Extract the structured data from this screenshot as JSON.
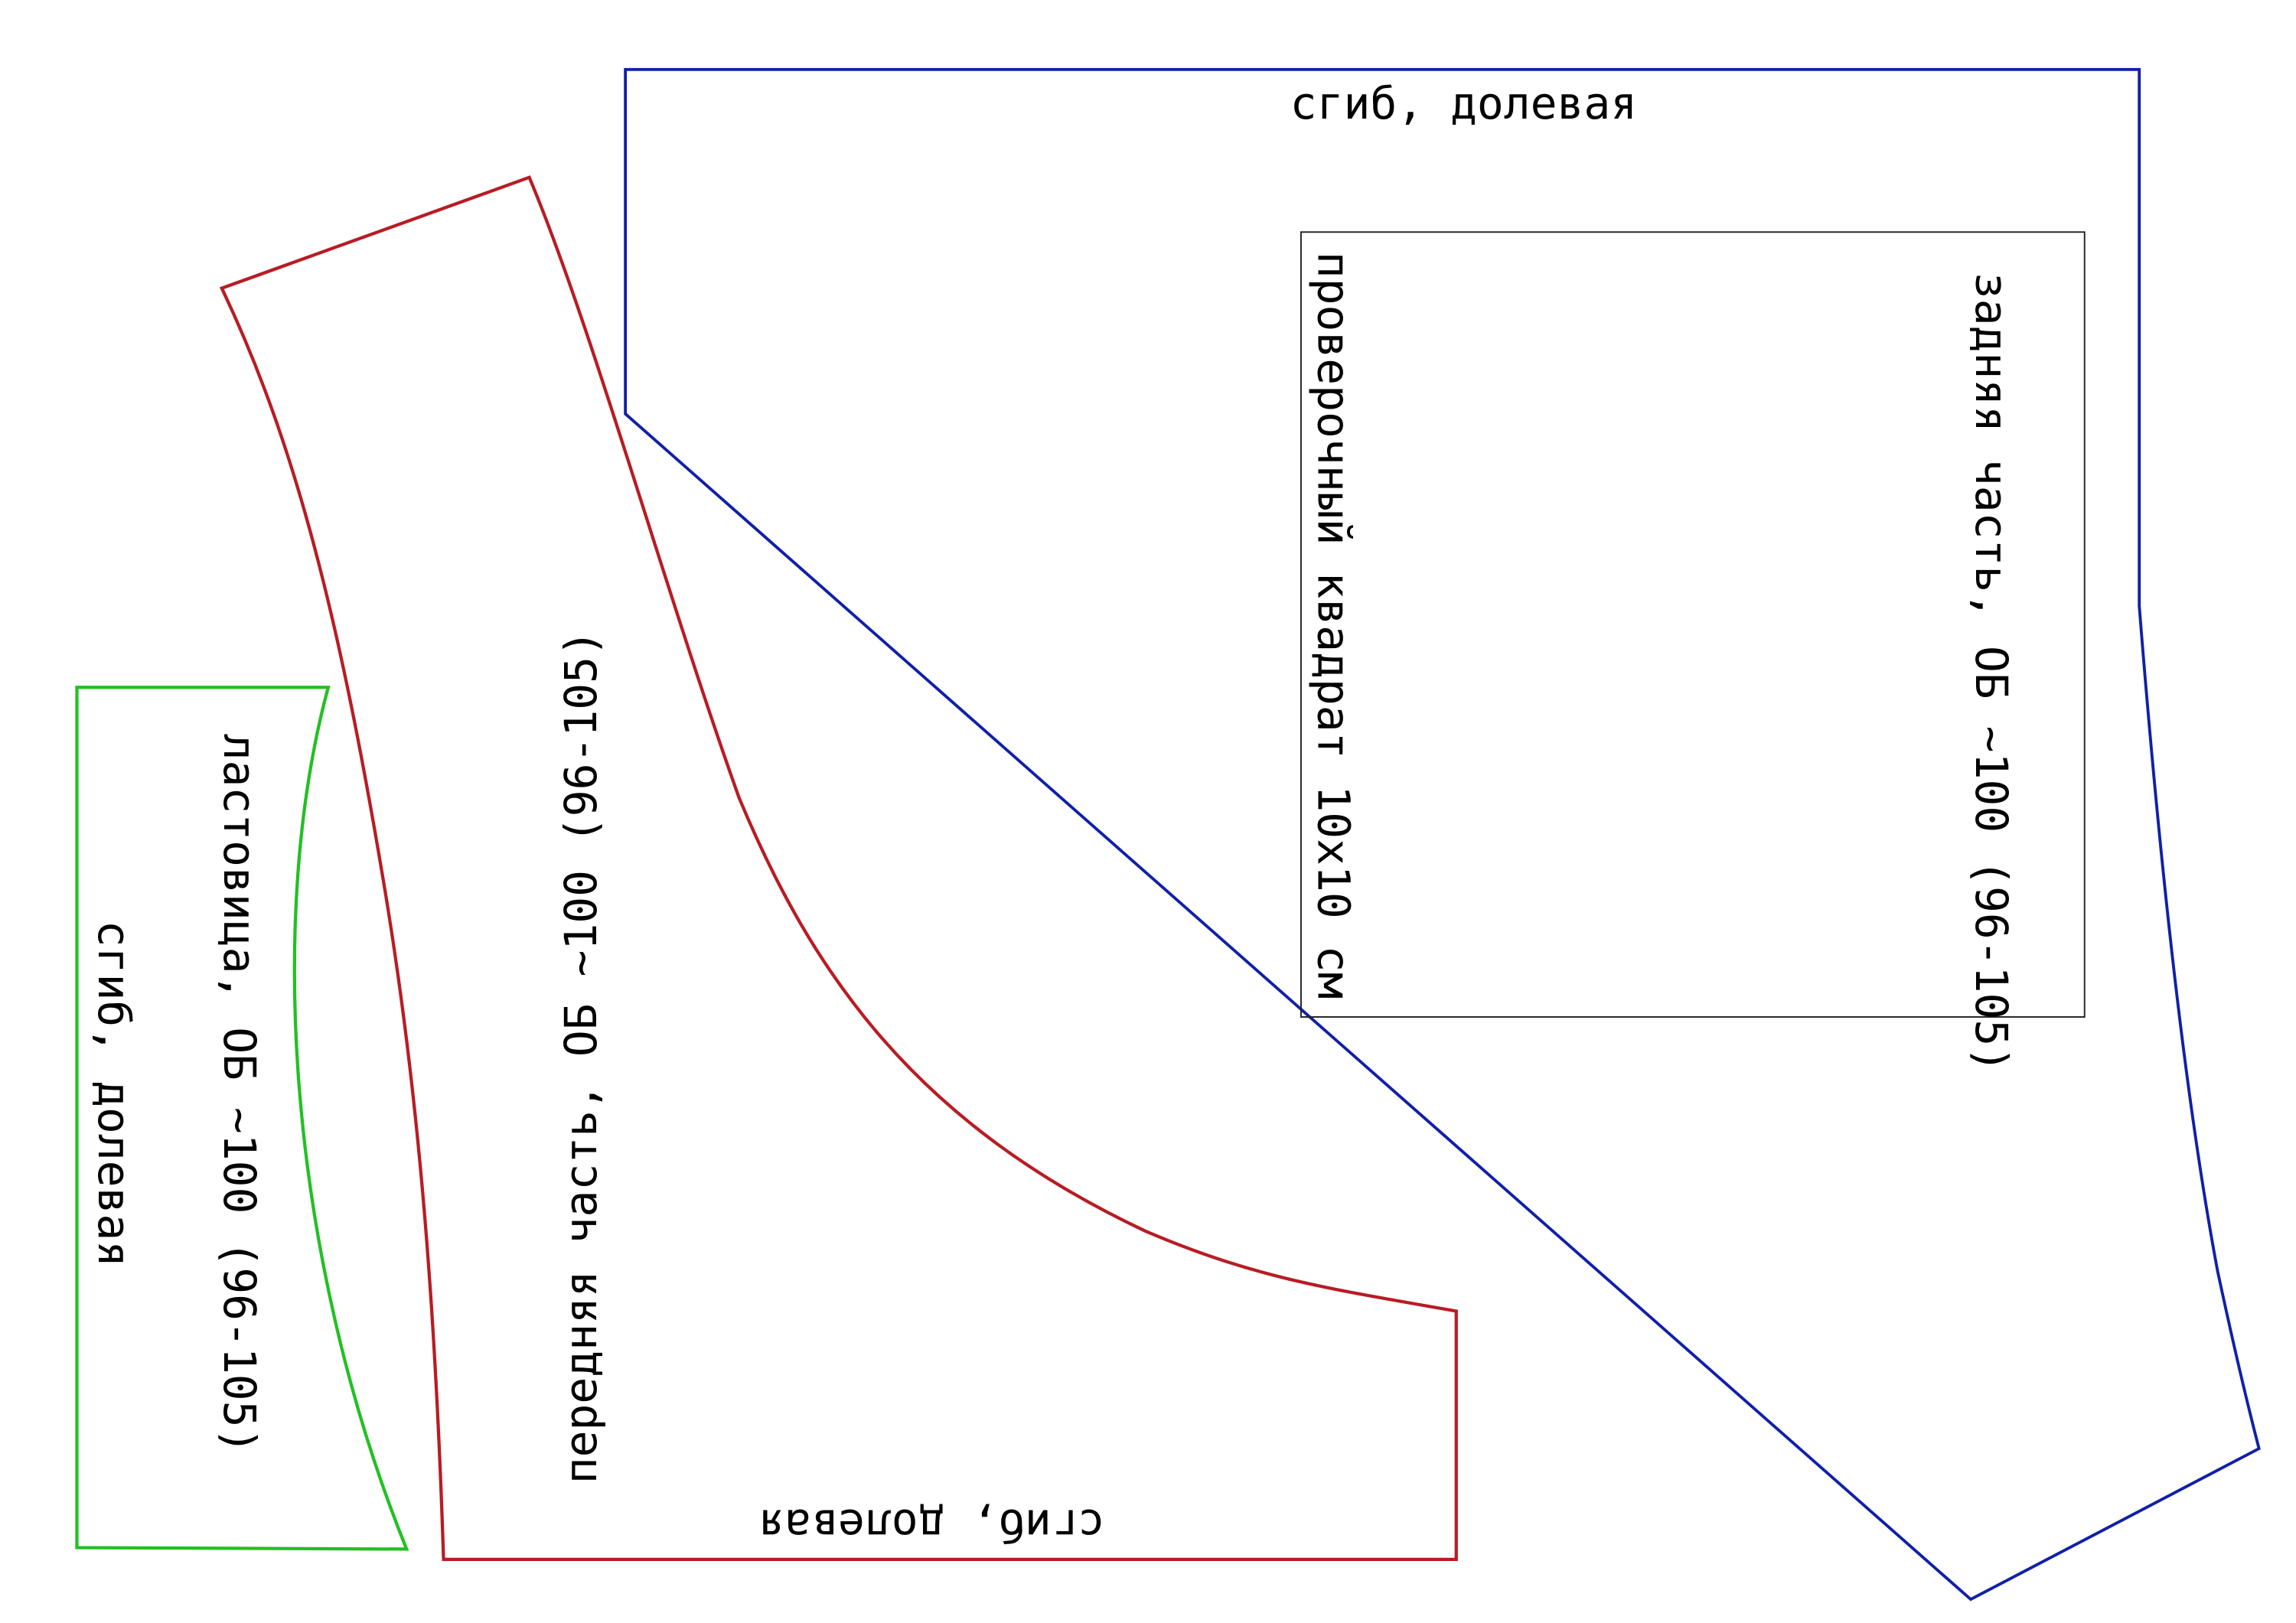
{
  "pieces": {
    "back": {
      "fold_label": "сгиб, долевая",
      "label": "задняя часть, ОБ ~100 (96-105)"
    },
    "check_square": {
      "label": "проверочный квадрат 10x10 см"
    },
    "front": {
      "label": "передняя часть, ОБ ~100 (96-105)",
      "fold_label": "сгиб, долевая"
    },
    "gusset": {
      "label": "ластовица, ОБ ~100 (96-105)",
      "fold_label": "сгиб, долевая"
    }
  }
}
